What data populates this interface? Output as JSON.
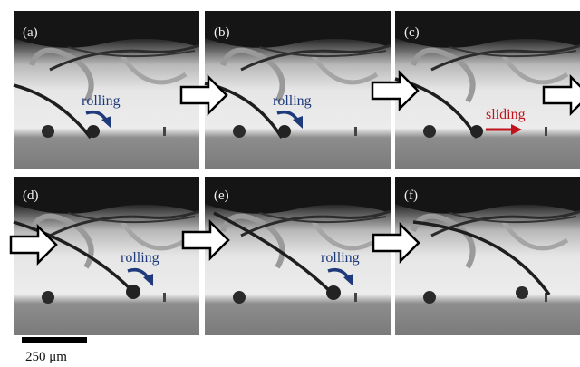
{
  "panels": [
    {
      "label": "(a)",
      "note": "rolling"
    },
    {
      "label": "(b)",
      "note": "rolling"
    },
    {
      "label": "(c)",
      "note": "sliding"
    },
    {
      "label": "(d)",
      "note": "rolling"
    },
    {
      "label": "(e)",
      "note": "rolling"
    },
    {
      "label": "(f)"
    }
  ],
  "scale_bar": {
    "label": "250 μm"
  }
}
